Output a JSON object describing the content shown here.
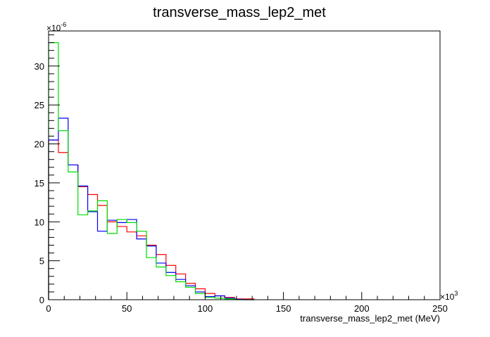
{
  "chart_data": {
    "type": "histogram",
    "title": "transverse_mass_lep2_met",
    "xlabel": "transverse_mass_lep2_met (MeV)",
    "ylabel": "",
    "x_exponent": "×10",
    "x_exponent_power": "3",
    "y_exponent": "×10",
    "y_exponent_power": "-6",
    "xlim": [
      0,
      250
    ],
    "ylim": [
      0,
      34.5
    ],
    "x_ticks": [
      0,
      50,
      100,
      150,
      200,
      250
    ],
    "x_tick_labels": [
      "0",
      "50",
      "100",
      "150",
      "200",
      "250"
    ],
    "y_ticks": [
      0,
      5,
      10,
      15,
      20,
      25,
      30
    ],
    "y_tick_labels": [
      "0",
      "5",
      "10",
      "15",
      "20",
      "25",
      "30"
    ],
    "bin_edges": [
      0,
      6.25,
      12.5,
      18.75,
      25,
      31.25,
      37.5,
      43.75,
      50,
      56.25,
      62.5,
      68.75,
      75,
      81.25,
      87.5,
      93.75,
      100,
      106.25,
      112.5,
      118.75,
      125,
      131.25
    ],
    "series": [
      {
        "color": "#ff0000",
        "values": [
          20.5,
          18.9,
          17.3,
          14.5,
          13.5,
          12.1,
          10.0,
          9.4,
          8.7,
          8.2,
          7.0,
          5.8,
          4.4,
          3.3,
          2.1,
          1.4,
          0.8,
          0.5,
          0.3,
          0.1,
          0.1
        ]
      },
      {
        "color": "#0000ff",
        "values": [
          20.5,
          23.3,
          17.3,
          14.6,
          11.3,
          8.8,
          10.2,
          9.9,
          10.3,
          7.8,
          6.9,
          4.7,
          3.5,
          2.6,
          1.8,
          1.0,
          0.4,
          0.5,
          0.2,
          0.05,
          0.0
        ]
      },
      {
        "color": "#00dd00",
        "values": [
          33.0,
          21.7,
          16.4,
          10.9,
          11.4,
          12.7,
          8.5,
          10.3,
          9.9,
          8.8,
          5.4,
          4.2,
          3.1,
          2.3,
          1.6,
          0.8,
          0.3,
          0.2,
          0.1,
          0.0,
          0.0
        ]
      }
    ]
  }
}
